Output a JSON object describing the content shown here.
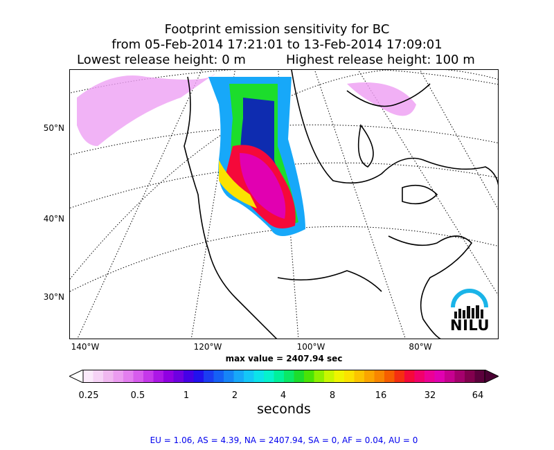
{
  "title": {
    "line1": "Footprint emission sensitivity for BC",
    "line2": "from 05-Feb-2014 17:21:01 to 13-Feb-2014 17:09:01",
    "lowest": "Lowest release height: 0 m",
    "highest": "Highest release height: 100 m"
  },
  "map": {
    "lat_labels": [
      "50°N",
      "40°N",
      "30°N"
    ],
    "lon_labels": [
      "140°W",
      "120°W",
      "100°W",
      "80°W"
    ],
    "max_value": "max value = 2407.94 sec",
    "logo_text": "NILU"
  },
  "colorbar": {
    "ticks": [
      "0.25",
      "0.5",
      "1",
      "2",
      "4",
      "8",
      "16",
      "32",
      "64"
    ],
    "unit": "seconds",
    "colors": [
      "#fbeafb",
      "#f6d3f6",
      "#f0b8f0",
      "#eb9cf0",
      "#e37eef",
      "#d75ced",
      "#c538ea",
      "#ac17e6",
      "#9000e2",
      "#6e00e1",
      "#4600e6",
      "#2211ee",
      "#1b3cf2",
      "#1560f5",
      "#1684f7",
      "#17a8f9",
      "#14c7f7",
      "#0ce3ea",
      "#06f2cd",
      "#00f19b",
      "#0ae866",
      "#1cdd2c",
      "#4ae306",
      "#8ef000",
      "#c8f700",
      "#eff500",
      "#fbe200",
      "#fcc400",
      "#fba500",
      "#f88600",
      "#f65e00",
      "#f52f11",
      "#f5093a",
      "#f1006b",
      "#ec0095",
      "#e100b1",
      "#c70090",
      "#a5006d",
      "#82004e",
      "#5c003c"
    ]
  },
  "stats": "EU = 1.06,  AS = 4.39,  NA = 2407.94,  SA = 0,  AF = 0.04,  AU = 0"
}
